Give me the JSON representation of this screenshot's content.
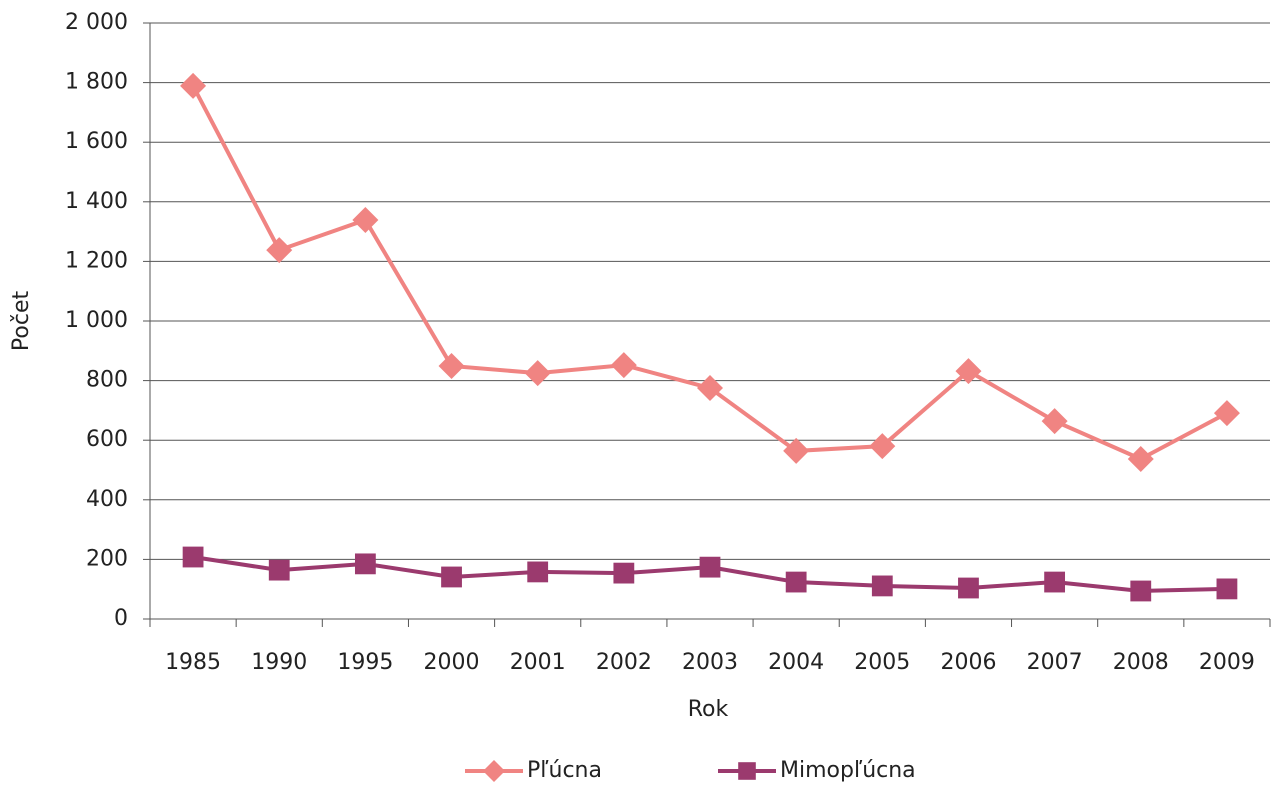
{
  "chart_data": {
    "type": "line",
    "x_label": "Rok",
    "y_label": "Počet",
    "categories": [
      "1985",
      "1990",
      "1995",
      "2000",
      "2001",
      "2002",
      "2003",
      "2004",
      "2005",
      "2006",
      "2007",
      "2008",
      "2009"
    ],
    "series": [
      {
        "name": "Pľúcna",
        "color": "#f08482",
        "marker": "diamond",
        "values": [
          1789,
          1238,
          1339,
          849,
          825,
          852,
          775,
          564,
          580,
          832,
          664,
          537,
          691
        ]
      },
      {
        "name": "Mimopľúcna",
        "color": "#9b3a6e",
        "marker": "square",
        "values": [
          208,
          164,
          185,
          141,
          158,
          154,
          174,
          124,
          111,
          104,
          124,
          94,
          101
        ]
      }
    ],
    "ylim": [
      0,
      2000
    ],
    "yticks": [
      0,
      200,
      400,
      600,
      800,
      {
        "value": 1000,
        "label": "1 000"
      },
      {
        "value": 1200,
        "label": "1 200"
      },
      {
        "value": 1400,
        "label": "1 400"
      },
      {
        "value": 1600,
        "label": "1 600"
      },
      {
        "value": 1800,
        "label": "1 800"
      },
      {
        "value": 2000,
        "label": "2 000"
      }
    ],
    "grid": true,
    "legend": "bottom"
  }
}
